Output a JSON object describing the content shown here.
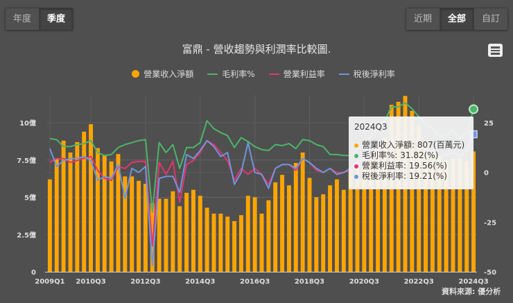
{
  "period_tabs": [
    {
      "label": "年度",
      "active": false
    },
    {
      "label": "季度",
      "active": true
    }
  ],
  "range_tabs": [
    {
      "label": "近期",
      "active": false
    },
    {
      "label": "全部",
      "active": true
    },
    {
      "label": "自訂",
      "active": false
    }
  ],
  "menu_icon": "hamburger-menu-icon",
  "source_text": "資料來源: 優分析",
  "colors": {
    "revenue": "#ffa500",
    "gross_margin": "#4cb56a",
    "operating_margin": "#e8336e",
    "net_margin": "#6f96e0",
    "background": "#4f4f4f"
  },
  "tooltip": {
    "title": "2024Q3",
    "rows": [
      {
        "label": "營業收入淨額: 807(百萬元)",
        "color": "#ffa500"
      },
      {
        "label": "毛利率%: 31.82(%)",
        "color": "#4cb56a"
      },
      {
        "label": "營業利益率: 19.56(%)",
        "color": "#e8336e"
      },
      {
        "label": "稅後淨利率: 19.21(%)",
        "color": "#6f96e0"
      }
    ]
  },
  "chart_data": {
    "type": "bar+line",
    "title": "富鼎 - 營收趨勢與利潤率比較圖.",
    "legend": [
      "營業收入淨額",
      "毛利率%",
      "營業利益率",
      "稅後淨利率"
    ],
    "legend_position": "top",
    "x_tick_labels": [
      "2009Q1",
      "2010Q3",
      "2012Q3",
      "2014Q3",
      "2016Q3",
      "2018Q3",
      "2020Q3",
      "2022Q3",
      "2024Q3"
    ],
    "left_axis": {
      "ticks": [
        "0",
        "2.5億",
        "5億",
        "7.5億",
        "10億"
      ],
      "range": [
        0,
        10
      ]
    },
    "right_axis": {
      "ticks": [
        "-50",
        "-25",
        "0",
        "25"
      ],
      "range": [
        -50,
        25
      ]
    },
    "grid": true,
    "categories": [
      "2009Q1",
      "2009Q2",
      "2009Q3",
      "2009Q4",
      "2010Q1",
      "2010Q2",
      "2010Q3",
      "2010Q4",
      "2011Q1",
      "2011Q2",
      "2011Q3",
      "2011Q4",
      "2012Q1",
      "2012Q2",
      "2012Q3",
      "2012Q4",
      "2013Q1",
      "2013Q2",
      "2013Q3",
      "2013Q4",
      "2014Q1",
      "2014Q2",
      "2014Q3",
      "2014Q4",
      "2015Q1",
      "2015Q2",
      "2015Q3",
      "2015Q4",
      "2016Q1",
      "2016Q2",
      "2016Q3",
      "2016Q4",
      "2017Q1",
      "2017Q2",
      "2017Q3",
      "2017Q4",
      "2018Q1",
      "2018Q2",
      "2018Q3",
      "2018Q4",
      "2019Q1",
      "2019Q2",
      "2019Q3",
      "2019Q4",
      "2020Q1",
      "2020Q2",
      "2020Q3",
      "2020Q4",
      "2021Q1",
      "2021Q2",
      "2021Q3",
      "2021Q4",
      "2022Q1",
      "2022Q2",
      "2022Q3",
      "2022Q4",
      "2023Q1",
      "2023Q2",
      "2023Q3",
      "2023Q4",
      "2024Q1",
      "2024Q2",
      "2024Q3"
    ],
    "series": [
      {
        "name": "營業收入淨額",
        "unit": "億",
        "axis": "left",
        "type": "bar",
        "values": [
          6.2,
          7.6,
          8.8,
          8.0,
          8.7,
          9.4,
          9.9,
          8.3,
          7.8,
          7.4,
          7.9,
          6.4,
          6.4,
          6.1,
          5.9,
          4.6,
          4.9,
          4.9,
          5.4,
          4.4,
          5.3,
          5.5,
          5.1,
          4.3,
          3.9,
          3.9,
          3.7,
          3.4,
          3.8,
          5.1,
          5.0,
          3.9,
          4.8,
          6.0,
          6.5,
          5.8,
          7.3,
          8.0,
          6.3,
          5.0,
          5.2,
          5.8,
          6.2,
          5.5,
          6.9,
          7.0,
          7.0,
          7.5,
          8.5,
          9.0,
          11.2,
          11.4,
          11.8,
          10.8,
          9.8,
          8.8,
          8.2,
          7.8,
          7.5,
          7.6,
          7.6,
          7.4,
          8.07
        ]
      },
      {
        "name": "毛利率%",
        "unit": "%",
        "axis": "right",
        "type": "line",
        "values": [
          17,
          16.5,
          13,
          13,
          14,
          14.5,
          16,
          10,
          8.5,
          9,
          12.5,
          14,
          15,
          16,
          16.5,
          -20,
          15,
          10,
          14,
          2,
          12.5,
          12.5,
          15,
          26,
          22,
          20,
          18.5,
          12.5,
          17.5,
          15.5,
          13,
          11.5,
          11,
          14,
          13.5,
          14.5,
          12,
          16.5,
          16,
          14,
          13,
          9,
          9,
          8.5,
          8.5,
          12,
          14.5,
          18,
          23,
          26,
          33,
          33,
          35,
          32,
          28,
          24,
          22,
          18,
          19,
          21,
          17,
          20,
          31.82
        ]
      },
      {
        "name": "營業利益率",
        "unit": "%",
        "axis": "right",
        "type": "line",
        "values": [
          5,
          7,
          7,
          5,
          6,
          7,
          8,
          1,
          -3,
          -4,
          3,
          2,
          5,
          5.5,
          5.5,
          -37,
          5,
          -1,
          5.5,
          -15,
          4,
          6,
          10,
          16,
          14,
          10,
          6,
          -4,
          2,
          -1,
          2,
          -1,
          -6,
          2,
          4,
          4,
          1,
          7,
          5,
          1,
          0,
          2,
          0,
          0,
          1,
          4,
          6,
          8,
          11,
          13,
          17,
          18,
          20,
          18,
          14,
          11,
          10,
          8,
          9,
          10,
          8,
          11,
          19.56
        ]
      },
      {
        "name": "稅後淨利率",
        "unit": "%",
        "axis": "right",
        "type": "line",
        "values": [
          12,
          3,
          6,
          7,
          7,
          8,
          6,
          -4,
          -2,
          -3,
          4,
          -13,
          2,
          0,
          3,
          -47,
          -3,
          -2,
          -2,
          -10,
          9,
          7,
          11,
          16,
          13,
          8,
          10,
          -6,
          0,
          15,
          0,
          -1,
          -8,
          2,
          4,
          4,
          2,
          7,
          5,
          2,
          0,
          2,
          -1,
          0,
          2,
          5,
          7,
          9,
          12,
          14,
          17,
          18,
          20,
          18,
          14,
          11,
          10,
          8,
          9,
          10,
          8,
          11,
          19.21
        ]
      }
    ]
  }
}
